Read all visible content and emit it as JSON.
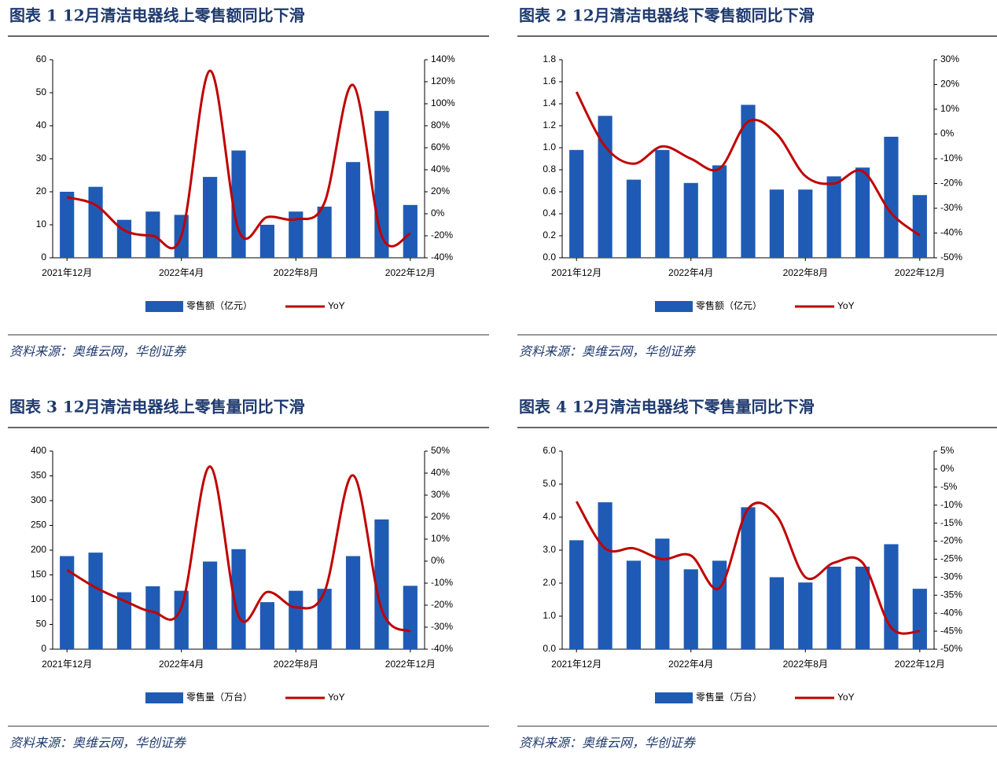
{
  "chart_data": [
    {
      "type": "bar-line",
      "title": "图表 1   12月清洁电器线上零售额同比下滑",
      "source": "资料来源：奥维云网，华创证券",
      "categories": [
        "2021年12月",
        null,
        null,
        null,
        "2022年4月",
        null,
        null,
        null,
        "2022年8月",
        null,
        null,
        null,
        "2022年12月"
      ],
      "series": [
        {
          "name": "零售额（亿元）",
          "color": "#1f5bb5",
          "values": [
            20,
            21.5,
            11.5,
            14,
            13,
            24.5,
            32.5,
            10,
            14,
            15.5,
            29,
            44.5,
            16
          ]
        },
        {
          "name": "YoY",
          "color": "#c00000",
          "axis": "y2",
          "values": [
            15,
            8,
            -15,
            -20,
            -20,
            130,
            -15,
            -3,
            -5,
            10,
            117,
            -20,
            -18
          ]
        }
      ],
      "ylim": [
        0,
        60
      ],
      "yticks": [
        0,
        10,
        20,
        30,
        40,
        50,
        60
      ],
      "y2lim": [
        -40,
        140
      ],
      "y2ticks": [
        {
          "value": -40,
          "label": "-40%"
        },
        {
          "value": -20,
          "label": "-20%"
        },
        {
          "value": 0,
          "label": "0%"
        },
        {
          "value": 20,
          "label": "20%"
        },
        {
          "value": 40,
          "label": "40%"
        },
        {
          "value": 60,
          "label": "60%"
        },
        {
          "value": 80,
          "label": "80%"
        },
        {
          "value": 100,
          "label": "100%"
        },
        {
          "value": 120,
          "label": "120%"
        },
        {
          "value": 140,
          "label": "140%"
        }
      ]
    },
    {
      "type": "bar-line",
      "title": "图表 2   12月清洁电器线下零售额同比下滑",
      "source": "资料来源：奥维云网，华创证券",
      "categories": [
        "2021年12月",
        null,
        null,
        null,
        "2022年4月",
        null,
        null,
        null,
        "2022年8月",
        null,
        null,
        null,
        "2022年12月"
      ],
      "series": [
        {
          "name": "零售额（亿元）",
          "color": "#1f5bb5",
          "values": [
            0.98,
            1.29,
            0.71,
            0.98,
            0.68,
            0.84,
            1.39,
            0.62,
            0.62,
            0.74,
            0.82,
            1.1,
            0.57
          ]
        },
        {
          "name": "YoY",
          "color": "#c00000",
          "axis": "y2",
          "values": [
            17,
            -5,
            -12,
            -5,
            -10,
            -14,
            5,
            0,
            -17,
            -20,
            -15,
            -32,
            -41
          ]
        }
      ],
      "ylim": [
        0,
        1.8
      ],
      "yticks": [
        {
          "value": 0,
          "label": "0.0"
        },
        0.2,
        0.4,
        0.6,
        0.8,
        {
          "value": 1,
          "label": "1.0"
        },
        1.2,
        1.4,
        1.6,
        1.8
      ],
      "y2lim": [
        -50,
        30
      ],
      "y2ticks": [
        {
          "value": -50,
          "label": "-50%"
        },
        {
          "value": -40,
          "label": "-40%"
        },
        {
          "value": -30,
          "label": "-30%"
        },
        {
          "value": -20,
          "label": "-20%"
        },
        {
          "value": -10,
          "label": "-10%"
        },
        {
          "value": 0,
          "label": "0%"
        },
        {
          "value": 10,
          "label": "10%"
        },
        {
          "value": 20,
          "label": "20%"
        },
        {
          "value": 30,
          "label": "30%"
        }
      ]
    },
    {
      "type": "bar-line",
      "title": "图表 3   12月清洁电器线上零售量同比下滑",
      "source": "资料来源：奥维云网，华创证券",
      "categories": [
        "2021年12月",
        null,
        null,
        null,
        "2022年4月",
        null,
        null,
        null,
        "2022年8月",
        null,
        null,
        null,
        "2022年12月"
      ],
      "series": [
        {
          "name": "零售量（万台）",
          "color": "#1f5bb5",
          "values": [
            188,
            195,
            115,
            127,
            118,
            177,
            202,
            95,
            118,
            122,
            188,
            262,
            128
          ]
        },
        {
          "name": "YoY",
          "color": "#c00000",
          "axis": "y2",
          "values": [
            -4,
            -12,
            -18,
            -23,
            -21,
            43,
            -25,
            -14,
            -21,
            -14,
            39,
            -22,
            -32
          ]
        }
      ],
      "ylim": [
        0,
        400
      ],
      "yticks": [
        0,
        50,
        100,
        150,
        200,
        250,
        300,
        350,
        400
      ],
      "y2lim": [
        -40,
        50
      ],
      "y2ticks": [
        {
          "value": -40,
          "label": "-40%"
        },
        {
          "value": -30,
          "label": "-30%"
        },
        {
          "value": -20,
          "label": "-20%"
        },
        {
          "value": -10,
          "label": "-10%"
        },
        {
          "value": 0,
          "label": "0%"
        },
        {
          "value": 10,
          "label": "10%"
        },
        {
          "value": 20,
          "label": "20%"
        },
        {
          "value": 30,
          "label": "30%"
        },
        {
          "value": 40,
          "label": "40%"
        },
        {
          "value": 50,
          "label": "50%"
        }
      ]
    },
    {
      "type": "bar-line",
      "title": "图表 4   12月清洁电器线下零售量同比下滑",
      "source": "资料来源：奥维云网，华创证券",
      "categories": [
        "2021年12月",
        null,
        null,
        null,
        "2022年4月",
        null,
        null,
        null,
        "2022年8月",
        null,
        null,
        null,
        "2022年12月"
      ],
      "series": [
        {
          "name": "零售量（万台）",
          "color": "#1f5bb5",
          "values": [
            3.3,
            4.45,
            2.68,
            3.35,
            2.42,
            2.68,
            4.3,
            2.18,
            2.02,
            2.5,
            2.5,
            3.18,
            1.83
          ]
        },
        {
          "name": "YoY",
          "color": "#c00000",
          "axis": "y2",
          "values": [
            -9,
            -22,
            -22,
            -25,
            -24,
            -33,
            -11,
            -13,
            -30,
            -26,
            -26,
            -44,
            -45
          ]
        }
      ],
      "ylim": [
        0,
        6
      ],
      "yticks": [
        {
          "value": 0,
          "label": "0.0"
        },
        {
          "value": 1,
          "label": "1.0"
        },
        {
          "value": 2,
          "label": "2.0"
        },
        {
          "value": 3,
          "label": "3.0"
        },
        {
          "value": 4,
          "label": "4.0"
        },
        {
          "value": 5,
          "label": "5.0"
        },
        {
          "value": 6,
          "label": "6.0"
        }
      ],
      "y2lim": [
        -50,
        5
      ],
      "y2ticks": [
        {
          "value": -50,
          "label": "-50%"
        },
        {
          "value": -45,
          "label": "-45%"
        },
        {
          "value": -40,
          "label": "-40%"
        },
        {
          "value": -35,
          "label": "-35%"
        },
        {
          "value": -30,
          "label": "-30%"
        },
        {
          "value": -25,
          "label": "-25%"
        },
        {
          "value": -20,
          "label": "-20%"
        },
        {
          "value": -15,
          "label": "-15%"
        },
        {
          "value": -10,
          "label": "-10%"
        },
        {
          "value": -5,
          "label": "-5%"
        },
        {
          "value": 0,
          "label": "0%"
        },
        {
          "value": 5,
          "label": "5%"
        }
      ]
    }
  ]
}
